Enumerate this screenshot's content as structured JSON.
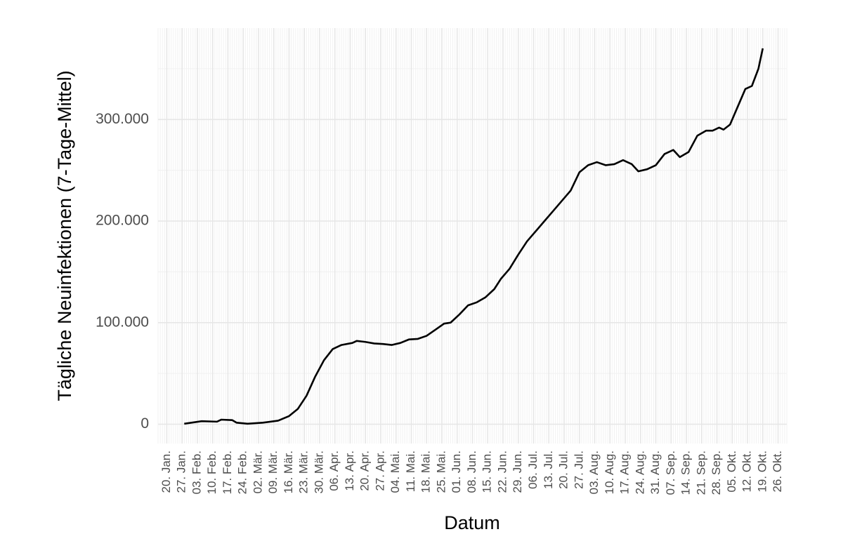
{
  "chart_data": {
    "type": "line",
    "x_label": "Datum",
    "y_label": "Tägliche Neuinfektionen (7-Tage-Mittel)",
    "x": [
      "28. Jan.",
      "05. Feb.",
      "12. Feb.",
      "14. Feb.",
      "19. Feb.",
      "21. Feb.",
      "26. Feb.",
      "04. Mär.",
      "11. Mär.",
      "16. Mär.",
      "20. Mär.",
      "24. Mär.",
      "28. Mär.",
      "01. Apr.",
      "05. Apr.",
      "09. Apr.",
      "14. Apr.",
      "16. Apr.",
      "20. Apr.",
      "24. Apr.",
      "28. Apr.",
      "02. Mai.",
      "06. Mai.",
      "10. Mai.",
      "14. Mai.",
      "18. Mai.",
      "22. Mai.",
      "26. Mai.",
      "29. Mai.",
      "02. Jun.",
      "06. Jun.",
      "10. Jun.",
      "14. Jun.",
      "18. Jun.",
      "21. Jun.",
      "25. Jun.",
      "29. Jun.",
      "03. Jul.",
      "07. Jul.",
      "11. Jul.",
      "15. Jul.",
      "19. Jul.",
      "23. Jul.",
      "27. Jul.",
      "31. Jul.",
      "04. Aug.",
      "08. Aug.",
      "12. Aug.",
      "16. Aug.",
      "20. Aug.",
      "23. Aug.",
      "27. Aug.",
      "31. Aug.",
      "04. Sep.",
      "08. Sep.",
      "11. Sep.",
      "15. Sep.",
      "19. Sep.",
      "23. Sep.",
      "26. Sep.",
      "29. Sep.",
      "01. Okt.",
      "04. Okt.",
      "08. Okt.",
      "11. Okt.",
      "14. Okt.",
      "17. Okt.",
      "19. Okt."
    ],
    "series": [
      {
        "name": "Neuinfektionen",
        "color": "#000000",
        "values": [
          500,
          3000,
          2500,
          4500,
          4000,
          1500,
          500,
          1500,
          3500,
          8000,
          15000,
          28000,
          47000,
          63000,
          74000,
          78000,
          80000,
          82000,
          81000,
          79500,
          79000,
          78000,
          80000,
          83500,
          84000,
          87000,
          93000,
          99000,
          100000,
          108000,
          117000,
          120000,
          125000,
          133000,
          143000,
          153000,
          167000,
          180000,
          190000,
          200000,
          210000,
          220000,
          230000,
          248000,
          255000,
          258000,
          255000,
          256000,
          260000,
          256000,
          249000,
          251000,
          255000,
          266000,
          270000,
          263000,
          268000,
          284000,
          289000,
          289000,
          292000,
          290000,
          295000,
          315000,
          330000,
          333000,
          350000,
          370000
        ]
      }
    ],
    "xlim": [
      "16. Jan.",
      "30. Okt."
    ],
    "xticks": [
      "20. Jan.",
      "27. Jan.",
      "03. Feb.",
      "10. Feb.",
      "17. Feb.",
      "24. Feb.",
      "02. Mär.",
      "09. Mär.",
      "16. Mär.",
      "23. Mär.",
      "30. Mär.",
      "06. Apr.",
      "13. Apr.",
      "20. Apr.",
      "27. Apr.",
      "04. Mai.",
      "11. Mai.",
      "18. Mai.",
      "25. Mai.",
      "01. Jun.",
      "08. Jun.",
      "15. Jun.",
      "22. Jun.",
      "29. Jun.",
      "06. Jul.",
      "13. Jul.",
      "20. Jul.",
      "27. Jul.",
      "03. Aug.",
      "10. Aug.",
      "17. Aug.",
      "24. Aug.",
      "31. Aug.",
      "07. Sep.",
      "14. Sep.",
      "21. Sep.",
      "28. Sep.",
      "05. Okt.",
      "12. Okt.",
      "19. Okt.",
      "26. Okt."
    ],
    "ylim": [
      -19000,
      390000
    ],
    "yticks": [
      0,
      {
        "value": 100000,
        "label": "100.000"
      },
      {
        "value": 200000,
        "label": "200.000"
      },
      {
        "value": 300000,
        "label": "300.000"
      }
    ],
    "grid": true
  }
}
